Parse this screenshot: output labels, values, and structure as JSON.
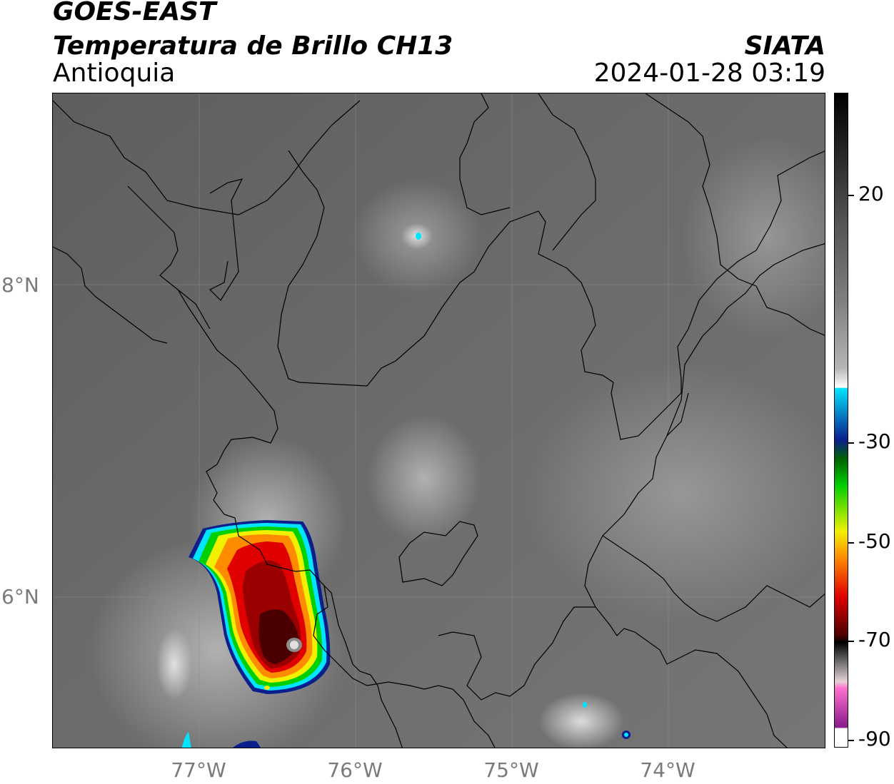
{
  "header": {
    "satellite": "GOES-EAST",
    "product": "Temperatura de Brillo CH13",
    "region": "Antioquia",
    "organization": "SIATA",
    "datetime": "2024-01-28 03:19"
  },
  "axes": {
    "lat_labels": [
      "8°N",
      "6°N"
    ],
    "lon_labels": [
      "77°W",
      "76°W",
      "75°W",
      "74°W"
    ]
  },
  "colorbar": {
    "tick_labels": [
      "20",
      "-30",
      "-50",
      "-70",
      "-90"
    ],
    "colors": {
      "black": "#000000",
      "gray_high": "#555555",
      "white": "#ffffff",
      "cyan": "#00e5ff",
      "blue": "#0a1e8c",
      "green": "#00d000",
      "yellow": "#f0f000",
      "orange": "#ff8c00",
      "red": "#e00000",
      "dark_red": "#4a0000",
      "pink": "#ff70d0",
      "purple": "#8a1a8a"
    }
  }
}
